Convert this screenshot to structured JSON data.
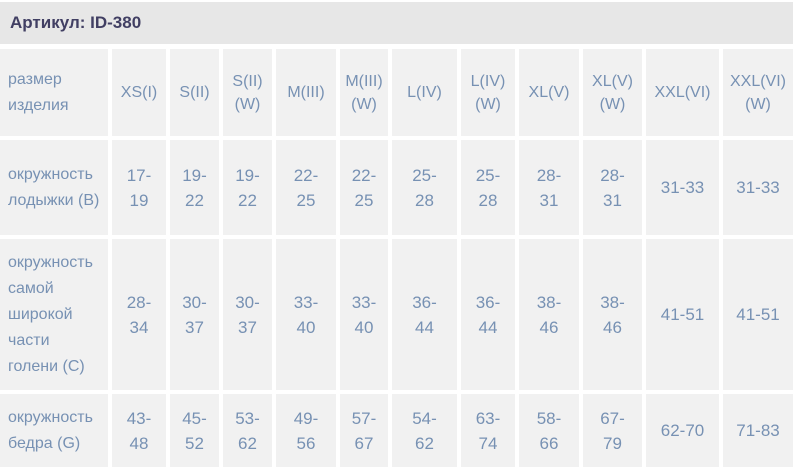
{
  "title": "Артикул: ID-380",
  "colors": {
    "title_bar_bg": "#e7e7e7",
    "cell_bg": "#f1f1f1",
    "title_text": "#413f63",
    "table_text": "#7791b3",
    "page_bg": "#ffffff"
  },
  "table": {
    "corner_label": "размер изделия",
    "size_columns": [
      "XS(I)",
      "S(II)",
      "S(II) (W)",
      "M(III)",
      "M(III) (W)",
      "L(IV)",
      "L(IV) (W)",
      "XL(V)",
      "XL(V) (W)",
      "XXL(VI)",
      "XXL(VI) (W)"
    ],
    "rows": [
      {
        "label": "окружность лодыжки (B)",
        "values": [
          "17-19",
          "19-22",
          "19-22",
          "22-25",
          "22-25",
          "25-28",
          "25-28",
          "28-31",
          "28-31",
          "31-33",
          "31-33"
        ]
      },
      {
        "label": "окружность самой широкой части голени (C)",
        "values": [
          "28-34",
          "30-37",
          "30-37",
          "33-40",
          "33-40",
          "36-44",
          "36-44",
          "38-46",
          "38-46",
          "41-51",
          "41-51"
        ]
      },
      {
        "label": "окружность бедра (G)",
        "values": [
          "43-48",
          "45-52",
          "53-62",
          "49-56",
          "57-67",
          "54-62",
          "63-74",
          "58-66",
          "67-79",
          "62-70",
          "71-83"
        ]
      }
    ]
  }
}
